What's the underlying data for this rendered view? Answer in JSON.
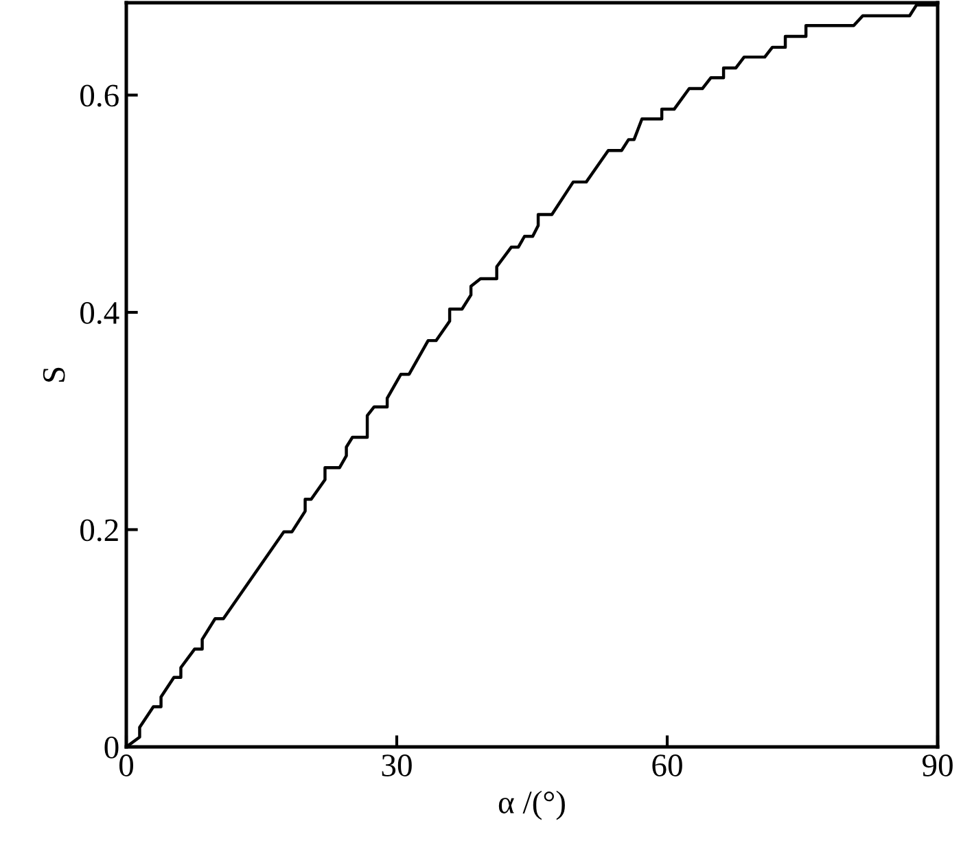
{
  "chart_data": {
    "type": "line",
    "xlabel": "α /(°)",
    "ylabel": "S",
    "xlim": [
      0,
      90
    ],
    "xticks": [
      0,
      30,
      60,
      90
    ],
    "ylim": [
      0,
      0.685
    ],
    "yticks": [
      0,
      0.2,
      0.4,
      0.6
    ],
    "grid": false,
    "marker": "none",
    "line_style": "solid",
    "x": [
      0,
      1.48,
      1.48,
      3.0,
      3.85,
      3.85,
      5.28,
      6.05,
      6.05,
      7.57,
      8.42,
      8.42,
      9.85,
      10.77,
      17.47,
      18.38,
      19.84,
      19.84,
      20.51,
      22.04,
      22.04,
      23.65,
      24.41,
      24.41,
      25.08,
      25.85,
      26.73,
      26.73,
      27.49,
      28.94,
      28.94,
      30.46,
      31.37,
      33.48,
      34.36,
      35.87,
      35.87,
      37.24,
      38.23,
      38.23,
      39.29,
      41.09,
      41.09,
      42.7,
      43.48,
      44.17,
      45.08,
      45.69,
      45.69,
      47.21,
      49.57,
      51.02,
      53.46,
      54.94,
      55.71,
      56.32,
      57.2,
      59.4,
      59.4,
      60.77,
      62.44,
      63.9,
      64.85,
      66.25,
      66.25,
      67.62,
      68.53,
      70.82,
      71.66,
      73.1,
      73.1,
      75.39,
      75.39,
      80.69,
      81.69,
      86.89,
      87.66,
      90
    ],
    "series": [
      {
        "color": "#000000",
        "values": [
          0,
          0.009,
          0.018,
          0.037,
          0.037,
          0.046,
          0.064,
          0.064,
          0.073,
          0.09,
          0.09,
          0.099,
          0.118,
          0.118,
          0.198,
          0.198,
          0.217,
          0.228,
          0.228,
          0.246,
          0.257,
          0.257,
          0.268,
          0.276,
          0.285,
          0.285,
          0.285,
          0.305,
          0.313,
          0.313,
          0.321,
          0.343,
          0.343,
          0.374,
          0.374,
          0.392,
          0.403,
          0.403,
          0.416,
          0.424,
          0.431,
          0.431,
          0.442,
          0.46,
          0.46,
          0.47,
          0.47,
          0.48,
          0.49,
          0.49,
          0.52,
          0.52,
          0.549,
          0.549,
          0.559,
          0.559,
          0.578,
          0.578,
          0.587,
          0.587,
          0.606,
          0.606,
          0.616,
          0.616,
          0.625,
          0.625,
          0.635,
          0.635,
          0.644,
          0.644,
          0.654,
          0.654,
          0.664,
          0.664,
          0.673,
          0.673,
          0.683,
          0.683
        ]
      }
    ]
  }
}
